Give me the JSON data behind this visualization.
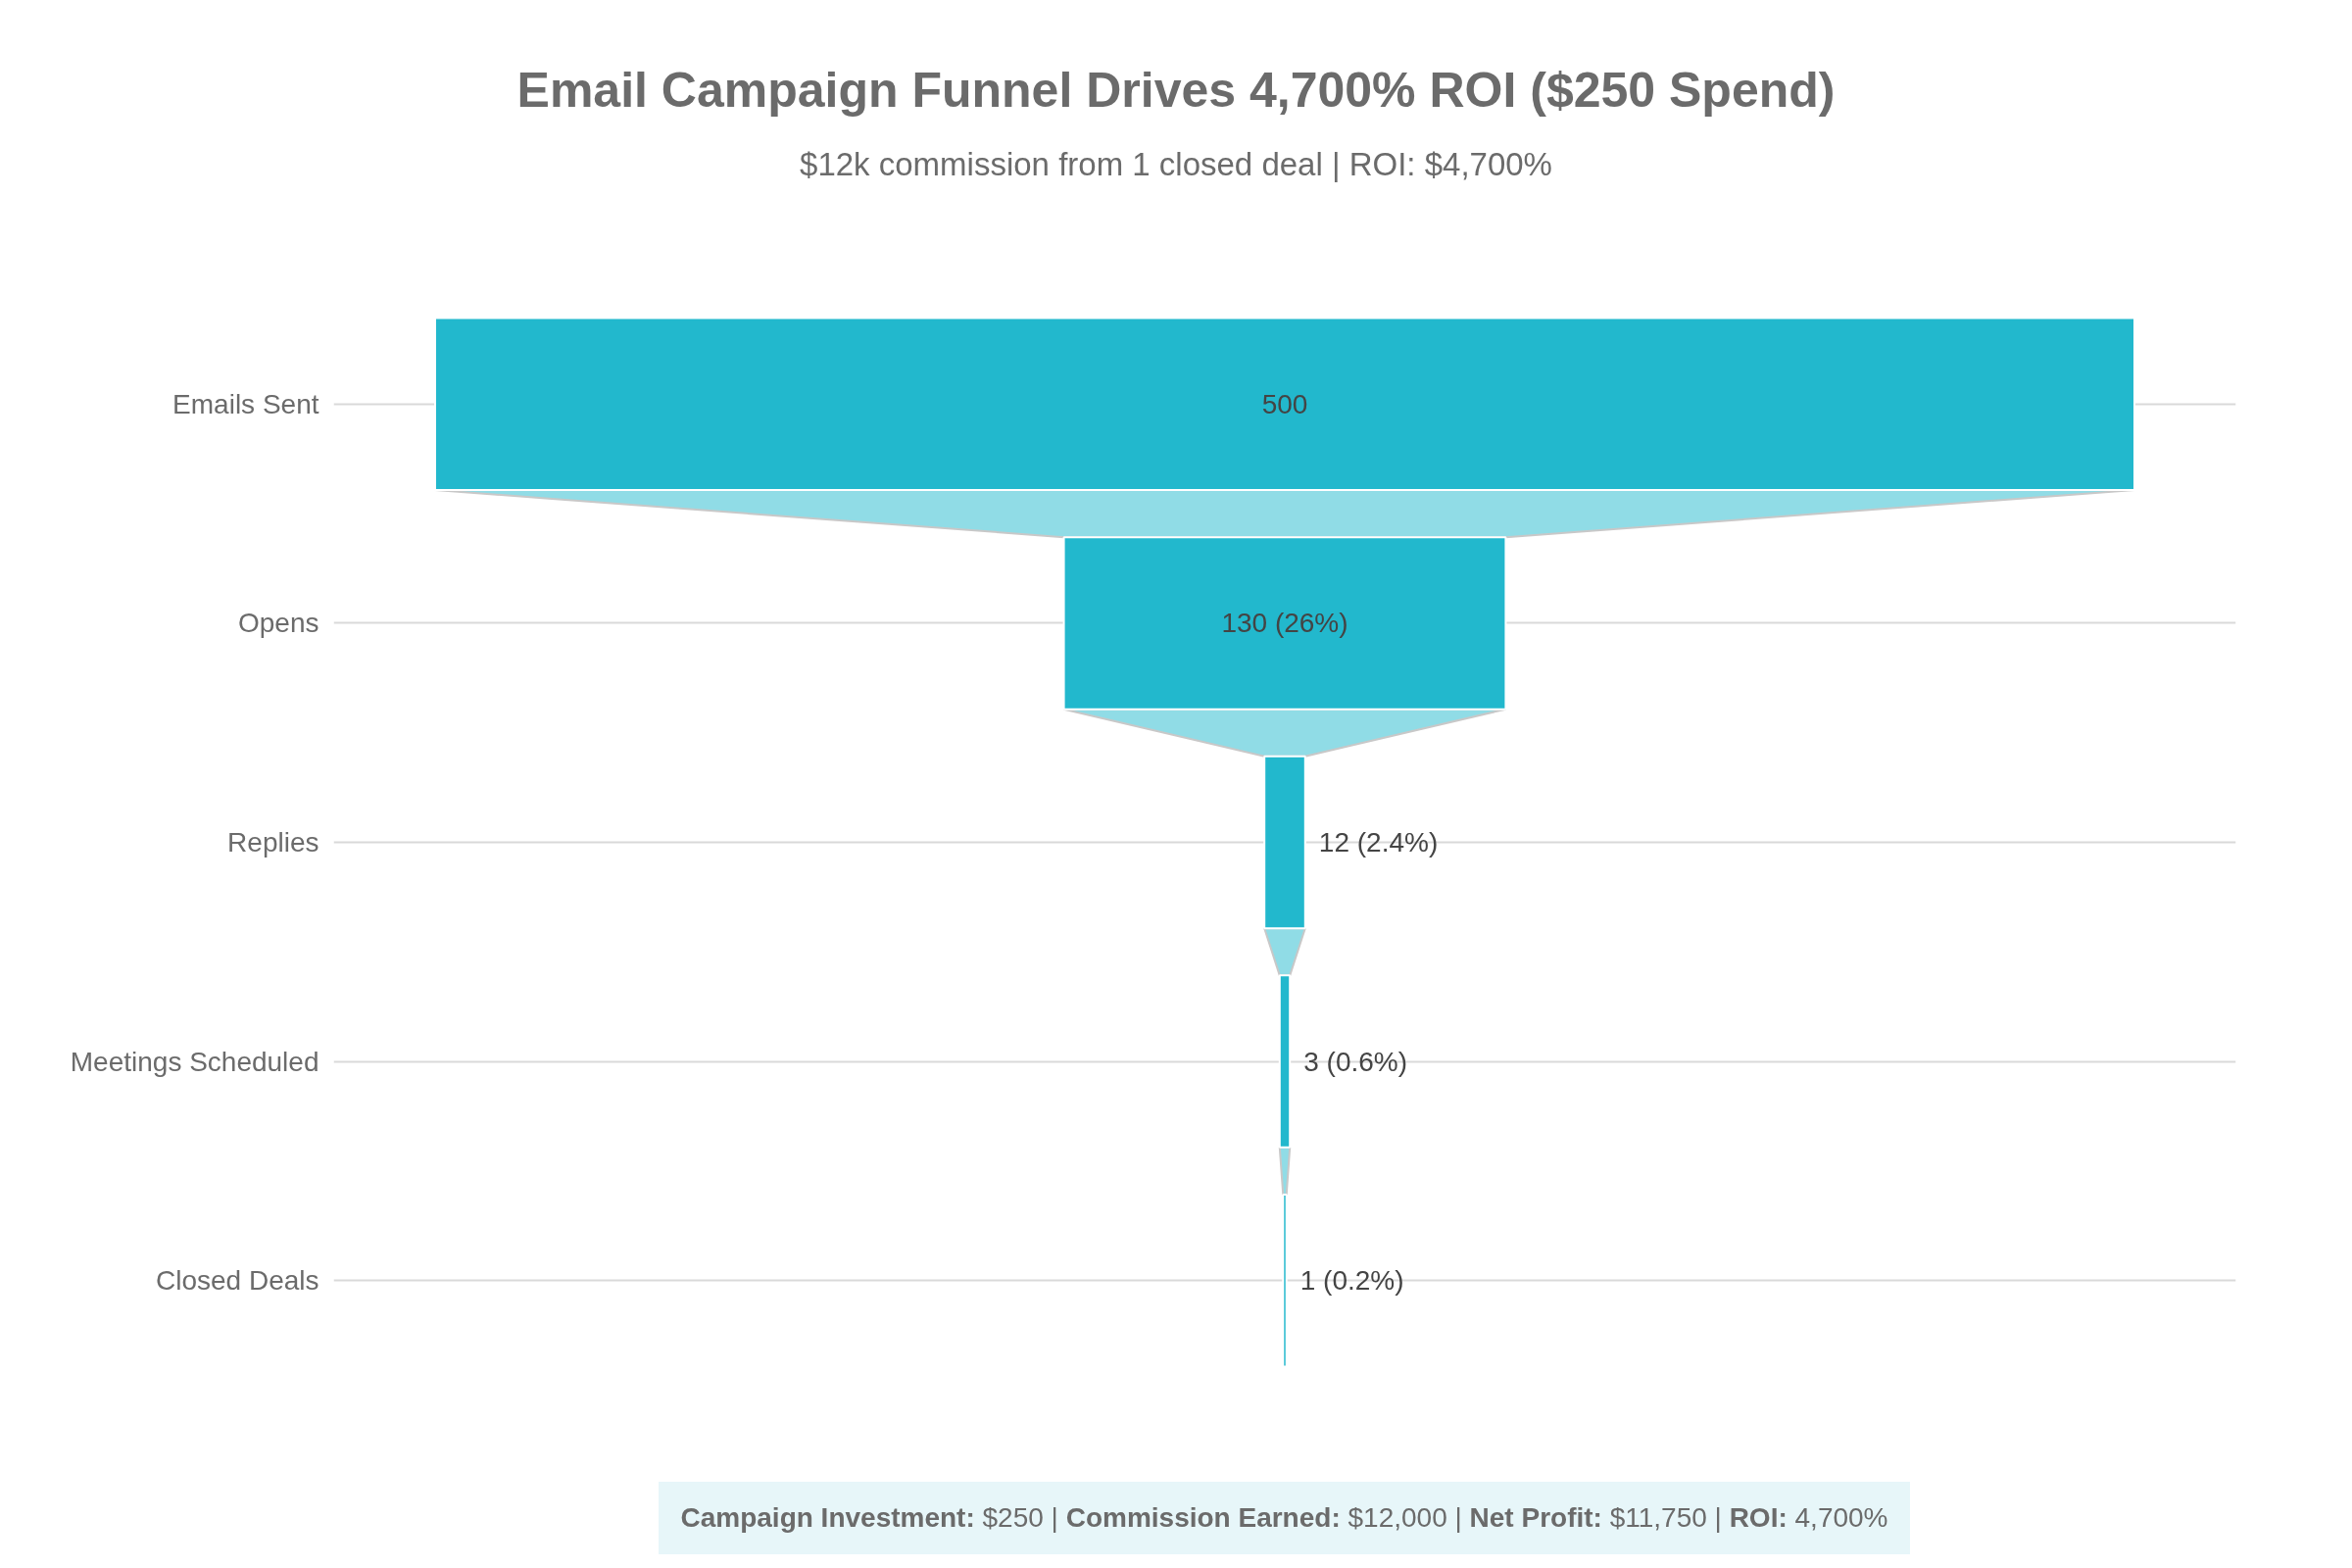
{
  "chart_data": {
    "type": "other",
    "title": "Email Campaign Funnel Drives 4,700% ROI ($250 Spend)",
    "subtitle": "$12k commission from 1 closed deal | ROI: $4,700%",
    "categories": [
      "Emails Sent",
      "Opens",
      "Replies",
      "Meetings Scheduled",
      "Closed Deals"
    ],
    "values": [
      500,
      130,
      12,
      3,
      1
    ],
    "value_labels": [
      "500",
      "130 (26%)",
      "12 (2.4%)",
      "3 (0.6%)",
      "1 (0.2%)"
    ],
    "color": "#22b8cd",
    "annotations": [
      "Campaign Investment: $250 | Commission Earned: $12,000 | Net Profit: $11,750 | ROI: 4,700%"
    ]
  }
}
